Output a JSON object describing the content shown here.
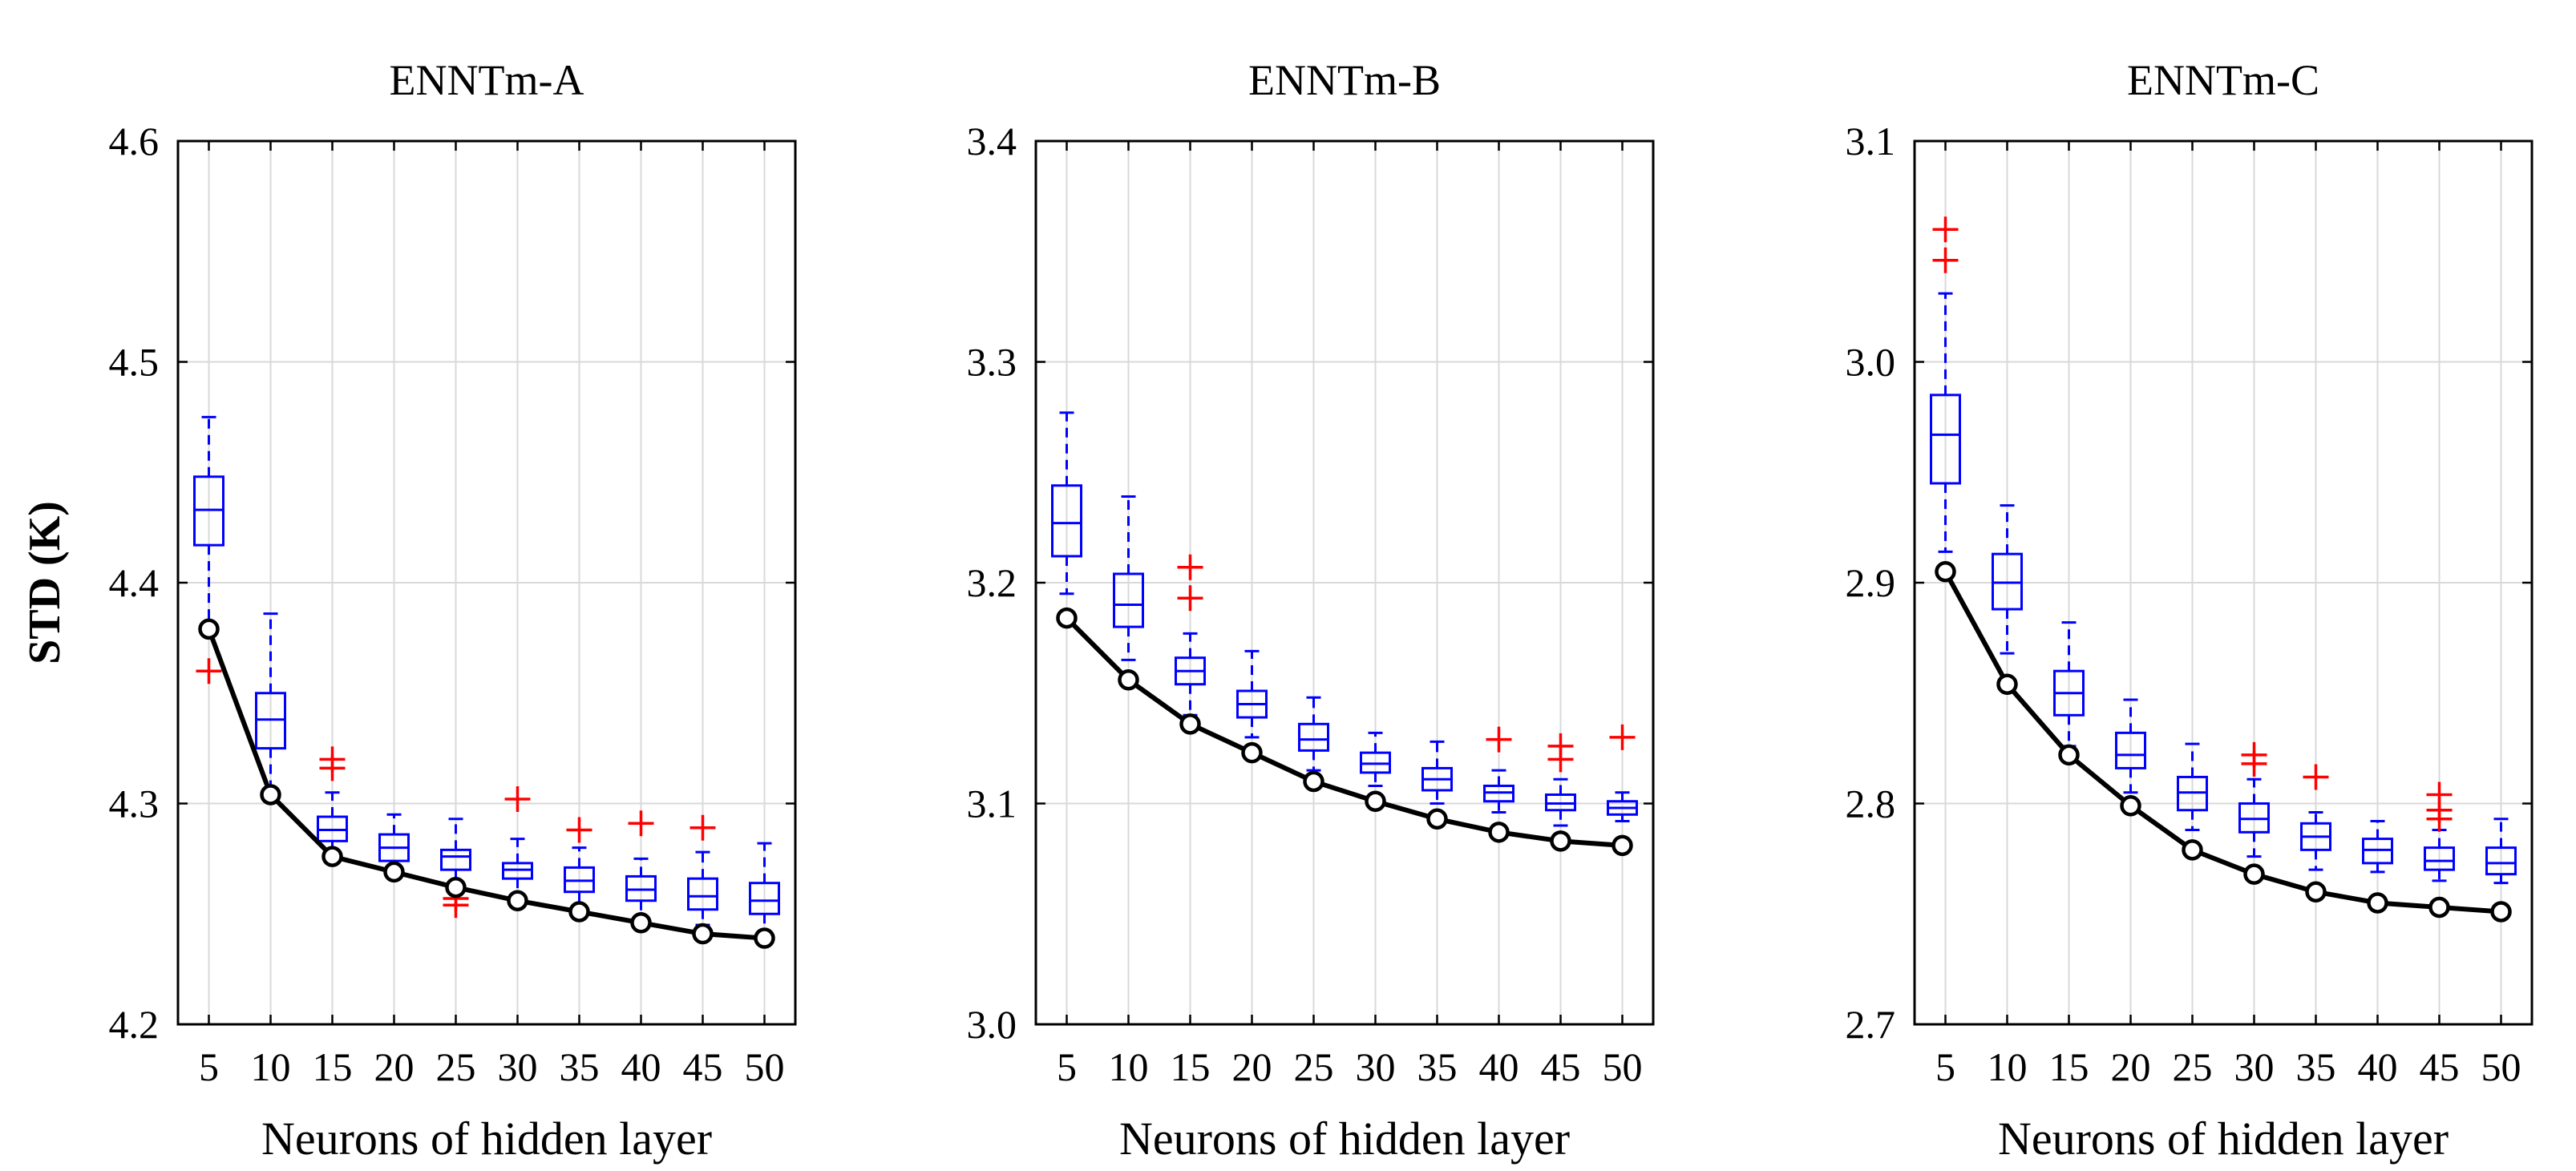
{
  "colors": {
    "box": "#0000ff",
    "outlier": "#ff0000",
    "line": "#000000",
    "grid": "#d9d9d9"
  },
  "chart_data": [
    {
      "type": "box",
      "title": "ENNTm-A",
      "xlabel": "Neurons of hidden layer",
      "ylabel": "STD (K)",
      "categories": [
        "5",
        "10",
        "15",
        "20",
        "25",
        "30",
        "35",
        "40",
        "45",
        "50"
      ],
      "ylim": [
        4.2,
        4.6
      ],
      "yticks": [
        "4.2",
        "4.3",
        "4.4",
        "4.5",
        "4.6"
      ],
      "grid": true,
      "boxes": [
        {
          "x": 5,
          "whisker_low": 4.38,
          "q1": 4.417,
          "median": 4.433,
          "q3": 4.448,
          "whisker_high": 4.475,
          "outliers": [
            4.36
          ]
        },
        {
          "x": 10,
          "whisker_low": 4.305,
          "q1": 4.325,
          "median": 4.338,
          "q3": 4.35,
          "whisker_high": 4.386,
          "outliers": []
        },
        {
          "x": 15,
          "whisker_low": 4.277,
          "q1": 4.283,
          "median": 4.288,
          "q3": 4.294,
          "whisker_high": 4.305,
          "outliers": [
            4.316,
            4.32
          ]
        },
        {
          "x": 20,
          "whisker_low": 4.268,
          "q1": 4.274,
          "median": 4.28,
          "q3": 4.286,
          "whisker_high": 4.295,
          "outliers": []
        },
        {
          "x": 25,
          "whisker_low": 4.262,
          "q1": 4.27,
          "median": 4.276,
          "q3": 4.279,
          "whisker_high": 4.293,
          "outliers": [
            4.254,
            4.257
          ]
        },
        {
          "x": 30,
          "whisker_low": 4.257,
          "q1": 4.266,
          "median": 4.27,
          "q3": 4.273,
          "whisker_high": 4.284,
          "outliers": [
            4.302
          ]
        },
        {
          "x": 35,
          "whisker_low": 4.253,
          "q1": 4.26,
          "median": 4.265,
          "q3": 4.271,
          "whisker_high": 4.28,
          "outliers": [
            4.288
          ]
        },
        {
          "x": 40,
          "whisker_low": 4.245,
          "q1": 4.256,
          "median": 4.261,
          "q3": 4.267,
          "whisker_high": 4.275,
          "outliers": [
            4.291
          ]
        },
        {
          "x": 45,
          "whisker_low": 4.245,
          "q1": 4.252,
          "median": 4.258,
          "q3": 4.266,
          "whisker_high": 4.278,
          "outliers": [
            4.289
          ]
        },
        {
          "x": 50,
          "whisker_low": 4.24,
          "q1": 4.25,
          "median": 4.256,
          "q3": 4.264,
          "whisker_high": 4.282,
          "outliers": []
        }
      ],
      "line": [
        4.379,
        4.304,
        4.276,
        4.269,
        4.262,
        4.256,
        4.251,
        4.246,
        4.241,
        4.239
      ]
    },
    {
      "type": "box",
      "title": "ENNTm-B",
      "xlabel": "Neurons of hidden layer",
      "ylabel": "",
      "categories": [
        "5",
        "10",
        "15",
        "20",
        "25",
        "30",
        "35",
        "40",
        "45",
        "50"
      ],
      "ylim": [
        3.0,
        3.4
      ],
      "yticks": [
        "3.0",
        "3.1",
        "3.2",
        "3.3",
        "3.4"
      ],
      "grid": true,
      "boxes": [
        {
          "x": 5,
          "whisker_low": 3.195,
          "q1": 3.212,
          "median": 3.227,
          "q3": 3.244,
          "whisker_high": 3.277,
          "outliers": []
        },
        {
          "x": 10,
          "whisker_low": 3.165,
          "q1": 3.18,
          "median": 3.19,
          "q3": 3.204,
          "whisker_high": 3.239,
          "outliers": []
        },
        {
          "x": 15,
          "whisker_low": 3.14,
          "q1": 3.154,
          "median": 3.16,
          "q3": 3.166,
          "whisker_high": 3.177,
          "outliers": [
            3.193,
            3.207
          ]
        },
        {
          "x": 20,
          "whisker_low": 3.13,
          "q1": 3.139,
          "median": 3.145,
          "q3": 3.151,
          "whisker_high": 3.169,
          "outliers": []
        },
        {
          "x": 25,
          "whisker_low": 3.115,
          "q1": 3.124,
          "median": 3.129,
          "q3": 3.136,
          "whisker_high": 3.148,
          "outliers": []
        },
        {
          "x": 30,
          "whisker_low": 3.108,
          "q1": 3.114,
          "median": 3.118,
          "q3": 3.123,
          "whisker_high": 3.132,
          "outliers": []
        },
        {
          "x": 35,
          "whisker_low": 3.1,
          "q1": 3.106,
          "median": 3.111,
          "q3": 3.116,
          "whisker_high": 3.128,
          "outliers": []
        },
        {
          "x": 40,
          "whisker_low": 3.096,
          "q1": 3.101,
          "median": 3.105,
          "q3": 3.108,
          "whisker_high": 3.115,
          "outliers": [
            3.129
          ]
        },
        {
          "x": 45,
          "whisker_low": 3.09,
          "q1": 3.097,
          "median": 3.1,
          "q3": 3.104,
          "whisker_high": 3.111,
          "outliers": [
            3.12,
            3.126
          ]
        },
        {
          "x": 50,
          "whisker_low": 3.092,
          "q1": 3.095,
          "median": 3.098,
          "q3": 3.101,
          "whisker_high": 3.105,
          "outliers": [
            3.13
          ]
        }
      ],
      "line": [
        3.184,
        3.156,
        3.136,
        3.123,
        3.11,
        3.101,
        3.093,
        3.087,
        3.083,
        3.081
      ]
    },
    {
      "type": "box",
      "title": "ENNTm-C",
      "xlabel": "Neurons of hidden layer",
      "ylabel": "",
      "categories": [
        "5",
        "10",
        "15",
        "20",
        "25",
        "30",
        "35",
        "40",
        "45",
        "50"
      ],
      "ylim": [
        2.7,
        3.1
      ],
      "yticks": [
        "2.7",
        "2.8",
        "2.9",
        "3.0",
        "3.1"
      ],
      "grid": true,
      "boxes": [
        {
          "x": 5,
          "whisker_low": 2.914,
          "q1": 2.945,
          "median": 2.967,
          "q3": 2.985,
          "whisker_high": 3.031,
          "outliers": [
            3.046,
            3.06
          ]
        },
        {
          "x": 10,
          "whisker_low": 2.868,
          "q1": 2.888,
          "median": 2.9,
          "q3": 2.913,
          "whisker_high": 2.935,
          "outliers": []
        },
        {
          "x": 15,
          "whisker_low": 2.826,
          "q1": 2.84,
          "median": 2.85,
          "q3": 2.86,
          "whisker_high": 2.882,
          "outliers": []
        },
        {
          "x": 20,
          "whisker_low": 2.805,
          "q1": 2.816,
          "median": 2.822,
          "q3": 2.832,
          "whisker_high": 2.847,
          "outliers": []
        },
        {
          "x": 25,
          "whisker_low": 2.788,
          "q1": 2.797,
          "median": 2.805,
          "q3": 2.812,
          "whisker_high": 2.827,
          "outliers": []
        },
        {
          "x": 30,
          "whisker_low": 2.776,
          "q1": 2.787,
          "median": 2.793,
          "q3": 2.8,
          "whisker_high": 2.811,
          "outliers": [
            2.818,
            2.822
          ]
        },
        {
          "x": 35,
          "whisker_low": 2.77,
          "q1": 2.779,
          "median": 2.785,
          "q3": 2.791,
          "whisker_high": 2.796,
          "outliers": [
            2.812
          ]
        },
        {
          "x": 40,
          "whisker_low": 2.769,
          "q1": 2.773,
          "median": 2.779,
          "q3": 2.784,
          "whisker_high": 2.792,
          "outliers": []
        },
        {
          "x": 45,
          "whisker_low": 2.765,
          "q1": 2.77,
          "median": 2.774,
          "q3": 2.78,
          "whisker_high": 2.788,
          "outliers": [
            2.793,
            2.797,
            2.804
          ]
        },
        {
          "x": 50,
          "whisker_low": 2.764,
          "q1": 2.768,
          "median": 2.773,
          "q3": 2.78,
          "whisker_high": 2.793,
          "outliers": []
        }
      ],
      "line": [
        2.905,
        2.854,
        2.822,
        2.799,
        2.779,
        2.768,
        2.76,
        2.755,
        2.753,
        2.751
      ]
    }
  ]
}
